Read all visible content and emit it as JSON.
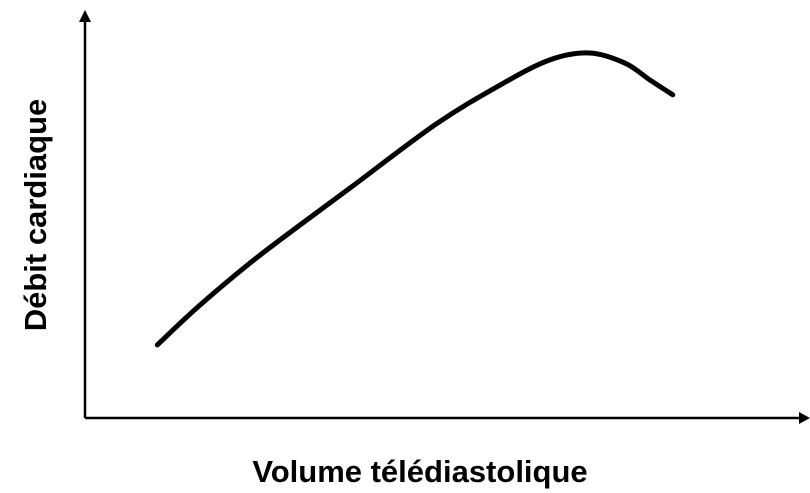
{
  "chart_data": {
    "type": "line",
    "x_label": "Volume télédiastolique",
    "y_label": "Débit cardiaque",
    "x": [
      10,
      15.9,
      24.2,
      36.7,
      48.4,
      57.4,
      64.3,
      69.8,
      74.7,
      78.1,
      81.3
    ],
    "series": [
      {
        "color": "#000000",
        "values": [
          18,
          27.8,
          40.1,
          56.7,
          72.2,
          82,
          88.2,
          89.9,
          87.4,
          83.3,
          79.6
        ]
      }
    ],
    "xlim": [
      0,
      100
    ],
    "ylim": [
      0,
      100
    ],
    "grid": false
  }
}
